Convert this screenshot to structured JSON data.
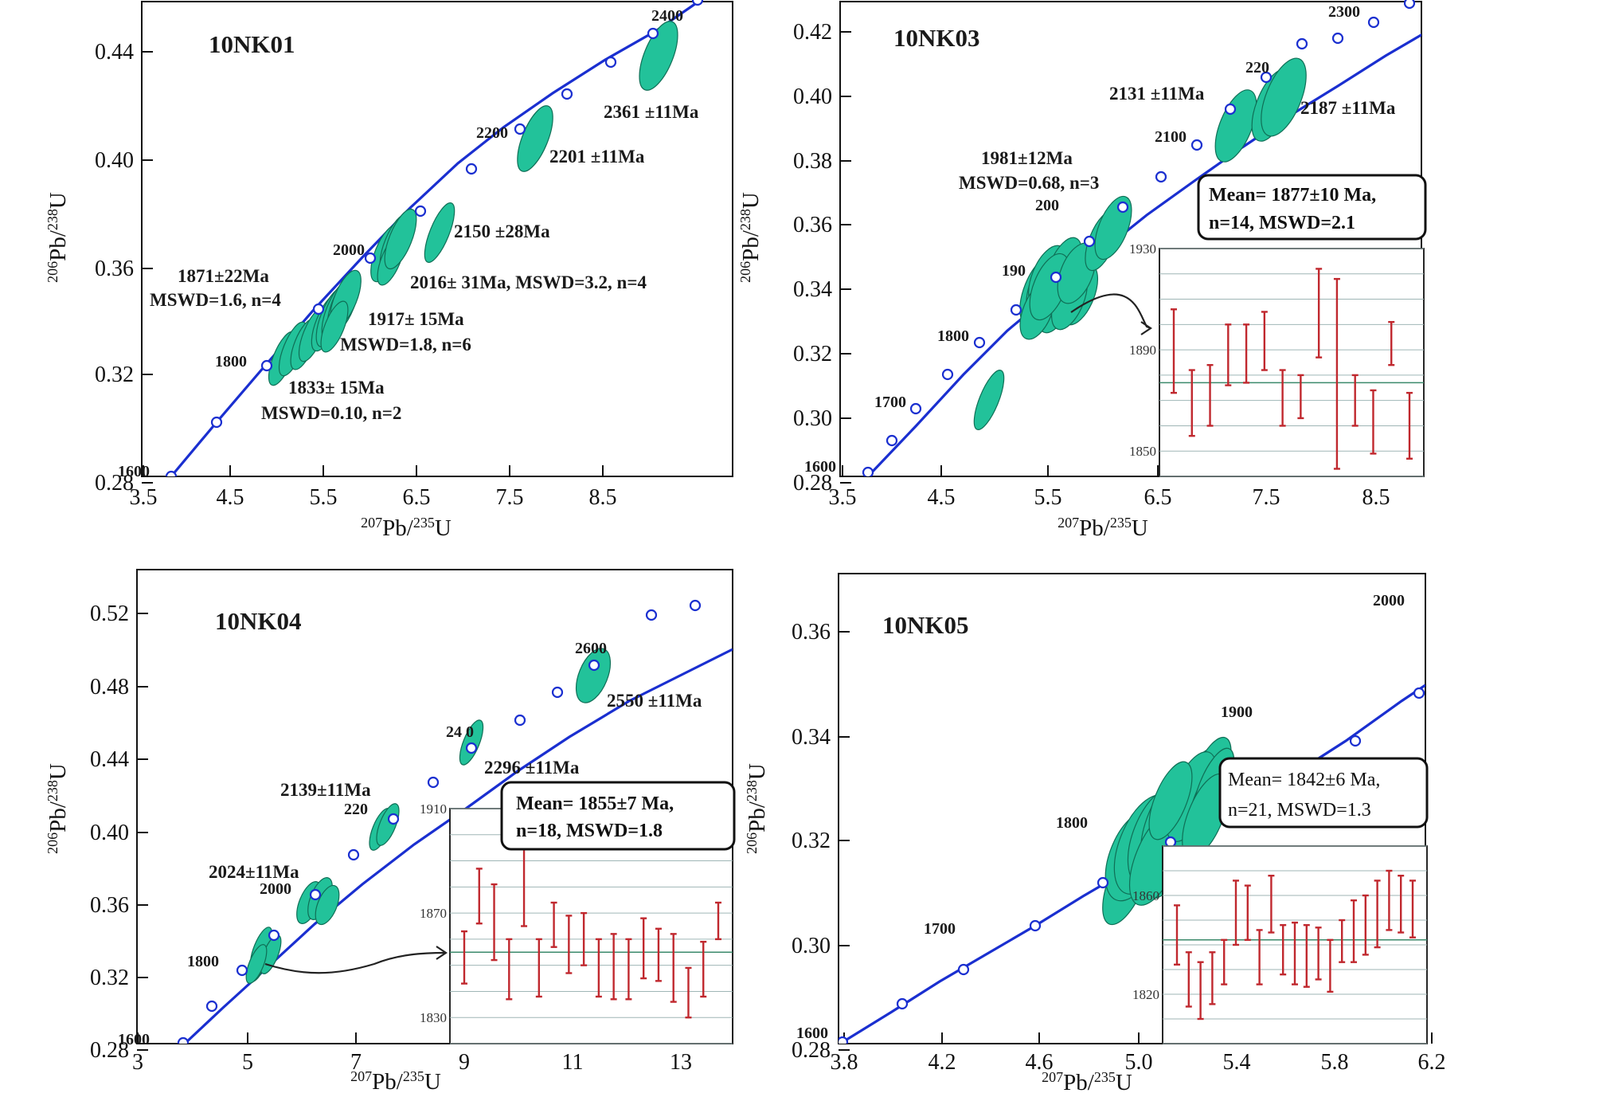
{
  "colors": {
    "concordia": "#1a2fd0",
    "ellipse": "#22c29a",
    "error_bar": "#c0282e"
  },
  "chart_data": [
    {
      "type": "scatter",
      "title": "10NK01",
      "xlabel": "207Pb/235U",
      "ylabel": "206Pb/238U",
      "xlim": [
        3.5,
        9.0
      ],
      "ylim": [
        0.28,
        0.46
      ],
      "xticks": [
        "3.5",
        "4.5",
        "5.5",
        "6.5",
        "7.5",
        "8.5"
      ],
      "yticks": [
        "0.28",
        "0.32",
        "0.36",
        "0.40",
        "0.44"
      ],
      "concordia_ages": [
        "1600",
        "1800",
        "2000",
        "2200",
        "2400"
      ],
      "ellipses": [
        {
          "x": 5.06,
          "y": 0.33
        },
        {
          "x": 5.14,
          "y": 0.334
        },
        {
          "x": 5.24,
          "y": 0.335
        },
        {
          "x": 5.33,
          "y": 0.339
        },
        {
          "x": 5.54,
          "y": 0.347
        },
        {
          "x": 5.6,
          "y": 0.35
        },
        {
          "x": 5.65,
          "y": 0.352
        },
        {
          "x": 5.7,
          "y": 0.354
        },
        {
          "x": 5.72,
          "y": 0.356
        },
        {
          "x": 5.62,
          "y": 0.348
        },
        {
          "x": 6.22,
          "y": 0.367
        },
        {
          "x": 6.3,
          "y": 0.37
        },
        {
          "x": 6.27,
          "y": 0.365
        },
        {
          "x": 6.35,
          "y": 0.372
        },
        {
          "x": 6.75,
          "y": 0.374
        },
        {
          "x": 7.75,
          "y": 0.41
        },
        {
          "x": 8.13,
          "y": 0.438
        }
      ],
      "annotations": [
        "2361 ±11Ma",
        "2201 ±11Ma",
        "2150 ±28Ma",
        "2016± 31Ma, MSWD=3.2, n=4",
        "1871±22Ma",
        "MSWD=1.6, n=4",
        "1917± 15Ma",
        "MSWD=1.8, n=6",
        "1833± 15Ma",
        "MSWD=0.10, n=2"
      ]
    },
    {
      "type": "scatter",
      "title": "10NK03",
      "xlabel": "207Pb/235U",
      "ylabel": "206Pb/238U",
      "xlim": [
        3.5,
        9.0
      ],
      "ylim": [
        0.28,
        0.43
      ],
      "xticks": [
        "3.5",
        "4.5",
        "5.5",
        "6.5",
        "7.5",
        "8.5"
      ],
      "yticks": [
        "0.28",
        "0.30",
        "0.32",
        "0.34",
        "0.36",
        "0.38",
        "0.40",
        "0.42"
      ],
      "concordia_ages": [
        "1600",
        "1700",
        "1800",
        "190",
        "200",
        "2100",
        "220",
        "2300"
      ],
      "ellipses": [
        {
          "x": 4.88,
          "y": 0.306
        },
        {
          "x": 5.22,
          "y": 0.336
        },
        {
          "x": 5.27,
          "y": 0.339
        },
        {
          "x": 5.32,
          "y": 0.338
        },
        {
          "x": 5.37,
          "y": 0.341
        },
        {
          "x": 5.42,
          "y": 0.338
        },
        {
          "x": 5.3,
          "y": 0.343
        },
        {
          "x": 5.35,
          "y": 0.335
        },
        {
          "x": 5.46,
          "y": 0.342
        },
        {
          "x": 5.25,
          "y": 0.332
        },
        {
          "x": 5.5,
          "y": 0.337
        },
        {
          "x": 5.33,
          "y": 0.346
        },
        {
          "x": 5.4,
          "y": 0.333
        },
        {
          "x": 5.28,
          "y": 0.341
        },
        {
          "x": 5.44,
          "y": 0.346
        },
        {
          "x": 5.98,
          "y": 0.356
        },
        {
          "x": 6.05,
          "y": 0.361
        },
        {
          "x": 7.18,
          "y": 0.391
        },
        {
          "x": 7.52,
          "y": 0.399
        },
        {
          "x": 7.6,
          "y": 0.402
        }
      ],
      "annotations": [
        "2131 ±11Ma",
        "2187 ±11Ma",
        "1981±12Ma",
        "MSWD=0.68, n=3"
      ],
      "mean_box": [
        "Mean= 1877±10 Ma,",
        "n=14, MSWD=2.1"
      ],
      "inset": {
        "ylim": [
          1840,
          1930
        ],
        "yticks": [
          "1930",
          "1890",
          "1850"
        ],
        "mean": 1877,
        "bars": [
          [
            1873,
            1906
          ],
          [
            1856,
            1882
          ],
          [
            1860,
            1884
          ],
          [
            1876,
            1900
          ],
          [
            1877,
            1900
          ],
          [
            1882,
            1905
          ],
          [
            1860,
            1882
          ],
          [
            1863,
            1880
          ],
          [
            1887,
            1922
          ],
          [
            1843,
            1918
          ],
          [
            1860,
            1880
          ],
          [
            1849,
            1874
          ],
          [
            1884,
            1901
          ],
          [
            1847,
            1873
          ]
        ]
      }
    },
    {
      "type": "scatter",
      "title": "10NK04",
      "xlabel": "207Pb/235U",
      "ylabel": "206Pb/238U",
      "xlim": [
        3,
        14
      ],
      "ylim": [
        0.28,
        0.54
      ],
      "xticks": [
        "3",
        "5",
        "7",
        "9",
        "11",
        "13"
      ],
      "yticks": [
        "0.28",
        "0.32",
        "0.36",
        "0.40",
        "0.44",
        "0.48",
        "0.52"
      ],
      "concordia_ages": [
        "1600",
        "1800",
        "2000",
        "220",
        "24 0",
        "2600"
      ],
      "ellipses": [
        {
          "x": 5.18,
          "y": 0.329
        },
        {
          "x": 5.24,
          "y": 0.331
        },
        {
          "x": 5.28,
          "y": 0.333
        },
        {
          "x": 5.22,
          "y": 0.334
        },
        {
          "x": 5.32,
          "y": 0.332
        },
        {
          "x": 5.2,
          "y": 0.328
        },
        {
          "x": 6.08,
          "y": 0.362
        },
        {
          "x": 6.22,
          "y": 0.365
        },
        {
          "x": 6.36,
          "y": 0.361
        },
        {
          "x": 7.42,
          "y": 0.403
        },
        {
          "x": 7.57,
          "y": 0.406
        },
        {
          "x": 9.08,
          "y": 0.449
        },
        {
          "x": 11.3,
          "y": 0.485
        }
      ],
      "annotations": [
        "2550 ±11Ma",
        "2296 ±11Ma",
        "2139±11Ma",
        "2024±11Ma"
      ],
      "mean_box": [
        "Mean= 1855±7  Ma,",
        "n=18, MSWD=1.8"
      ],
      "inset": {
        "ylim": [
          1820,
          1910
        ],
        "yticks": [
          "1910",
          "1870",
          "1830"
        ],
        "mean": 1855,
        "bars": [
          [
            1843,
            1863
          ],
          [
            1866,
            1887
          ],
          [
            1852,
            1881
          ],
          [
            1837,
            1860
          ],
          [
            1865,
            1895
          ],
          [
            1838,
            1860
          ],
          [
            1857,
            1874
          ],
          [
            1847,
            1869
          ],
          [
            1850,
            1870
          ],
          [
            1838,
            1860
          ],
          [
            1837,
            1862
          ],
          [
            1837,
            1860
          ],
          [
            1845,
            1868
          ],
          [
            1844,
            1864
          ],
          [
            1836,
            1862
          ],
          [
            1830,
            1849
          ],
          [
            1838,
            1859
          ],
          [
            1860,
            1874
          ]
        ]
      }
    },
    {
      "type": "scatter",
      "title": "10NK05",
      "xlabel": "207Pb/235U",
      "ylabel": "206Pb/238U",
      "xlim": [
        3.8,
        6.2
      ],
      "ylim": [
        0.28,
        0.37
      ],
      "xticks": [
        "3.8",
        "4.2",
        "4.6",
        "5.0",
        "5.4",
        "5.8",
        "6.2"
      ],
      "yticks": [
        "0.28",
        "0.30",
        "0.32",
        "0.34",
        "0.36"
      ],
      "concordia_ages": [
        "1600",
        "1700",
        "1800",
        "1900",
        "2000"
      ],
      "ellipses": [
        {
          "x": 4.92,
          "y": 0.314
        },
        {
          "x": 4.95,
          "y": 0.322
        },
        {
          "x": 5.0,
          "y": 0.325
        },
        {
          "x": 5.08,
          "y": 0.327
        },
        {
          "x": 5.13,
          "y": 0.33
        },
        {
          "x": 5.18,
          "y": 0.333
        },
        {
          "x": 5.22,
          "y": 0.335
        },
        {
          "x": 5.25,
          "y": 0.336
        },
        {
          "x": 5.27,
          "y": 0.337
        },
        {
          "x": 5.2,
          "y": 0.331
        },
        {
          "x": 5.15,
          "y": 0.327
        },
        {
          "x": 5.23,
          "y": 0.338
        },
        {
          "x": 5.28,
          "y": 0.34
        },
        {
          "x": 5.1,
          "y": 0.322
        },
        {
          "x": 5.05,
          "y": 0.32
        },
        {
          "x": 5.24,
          "y": 0.332
        },
        {
          "x": 5.19,
          "y": 0.336
        },
        {
          "x": 5.29,
          "y": 0.334
        },
        {
          "x": 5.12,
          "y": 0.334
        },
        {
          "x": 5.3,
          "y": 0.338
        },
        {
          "x": 5.26,
          "y": 0.33
        }
      ],
      "mean_box": [
        "Mean= 1842±6 Ma,",
        "n=21, MSWD=1.3"
      ],
      "inset": {
        "ylim": [
          1800,
          1880
        ],
        "yticks": [
          "1860",
          "1820"
        ],
        "mean": 1842,
        "bars": [
          [
            1832,
            1856
          ],
          [
            1815,
            1837
          ],
          [
            1810,
            1833
          ],
          [
            1816,
            1837
          ],
          [
            1824,
            1842
          ],
          [
            1840,
            1866
          ],
          [
            1842,
            1864
          ],
          [
            1824,
            1846
          ],
          [
            1845,
            1868
          ],
          [
            1828,
            1848
          ],
          [
            1824,
            1849
          ],
          [
            1823,
            1848
          ],
          [
            1826,
            1847
          ],
          [
            1821,
            1842
          ],
          [
            1833,
            1850
          ],
          [
            1833,
            1858
          ],
          [
            1836,
            1860
          ],
          [
            1839,
            1866
          ],
          [
            1846,
            1870
          ],
          [
            1845,
            1868
          ],
          [
            1843,
            1866
          ]
        ]
      }
    }
  ]
}
